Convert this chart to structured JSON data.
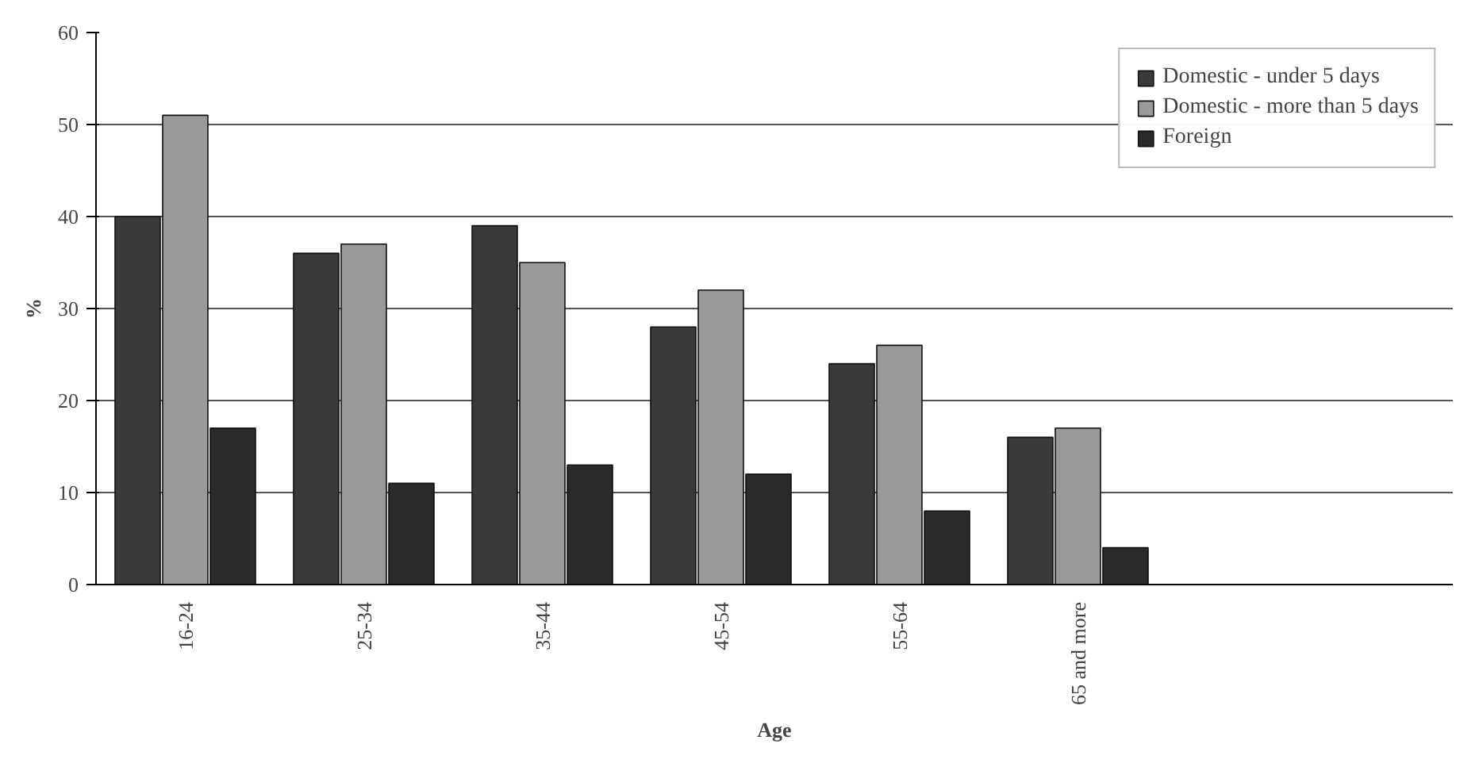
{
  "chart_data": {
    "type": "bar",
    "xlabel": "Age",
    "ylabel": "%",
    "categories": [
      "16-24",
      "25-34",
      "35-44",
      "45-54",
      "55-64",
      "65 and more"
    ],
    "series": [
      {
        "name": "Domestic - under 5 days",
        "color": "#3a3a3a",
        "values": [
          40,
          36,
          39,
          28,
          24,
          16
        ]
      },
      {
        "name": "Domestic - more than 5 days",
        "color": "#9a9a9a",
        "values": [
          51,
          37,
          35,
          32,
          26,
          17
        ]
      },
      {
        "name": "Foreign",
        "color": "#2a2a2a",
        "values": [
          17,
          11,
          13,
          12,
          8,
          4
        ]
      }
    ],
    "ylim": [
      0,
      60
    ],
    "yticks": [
      0,
      10,
      20,
      30,
      40,
      50,
      60
    ],
    "grid": "y",
    "legend": "top right"
  }
}
